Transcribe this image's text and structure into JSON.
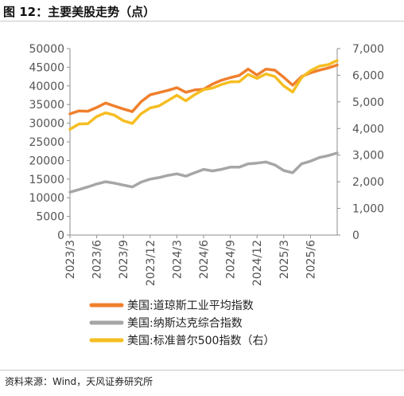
{
  "header": {
    "title": "图 12：主要美股走势（点）"
  },
  "footer": {
    "source": "资料来源：Wind，天风证券研究所"
  },
  "colors": {
    "dow": "#F07F2D",
    "nasdaq": "#A6A6A6",
    "sp500": "#F5BE22",
    "axis": "#8C8C8C"
  },
  "chart_data": {
    "type": "line",
    "title": "",
    "x": [
      "2023-03",
      "2023-04",
      "2023-05",
      "2023-06",
      "2023-07",
      "2023-08",
      "2023-09",
      "2023-10",
      "2023-11",
      "2023-12",
      "2024-01",
      "2024-02",
      "2024-03",
      "2024-04",
      "2024-05",
      "2024-06",
      "2024-07",
      "2024-08",
      "2024-09",
      "2024-10",
      "2024-11",
      "2024-12",
      "2025-01",
      "2025-02",
      "2025-03",
      "2025-04",
      "2025-05",
      "2025-06",
      "2025-07",
      "2025-08",
      "2025-09"
    ],
    "x_tick_labels": [
      "2023/3",
      "2023/6",
      "2023/9",
      "2023/12",
      "2024/3",
      "2024/6",
      "2024/9",
      "2024/12",
      "2025/3",
      "2025/6"
    ],
    "y_left": {
      "ticks": [
        "0",
        "5000",
        "10000",
        "15000",
        "20000",
        "25000",
        "30000",
        "35000",
        "40000",
        "45000",
        "50000"
      ],
      "ylim": [
        0,
        50000
      ]
    },
    "y_right": {
      "ticks": [
        "0",
        "1,000",
        "2,000",
        "3,000",
        "4,000",
        "5,000",
        "6,000",
        "7,000"
      ],
      "ylim": [
        0,
        7000
      ]
    },
    "series": [
      {
        "name": "美国:道琼斯工业平均指数",
        "axis": "left",
        "values": [
          32500,
          33300,
          33200,
          34200,
          35400,
          34600,
          33800,
          33100,
          35800,
          37600,
          38200,
          38800,
          39500,
          38300,
          38900,
          39100,
          40500,
          41500,
          42200,
          42800,
          44500,
          42900,
          44500,
          44200,
          42300,
          40200,
          42500,
          43500,
          44200,
          44800,
          45600
        ]
      },
      {
        "name": "美国:纳斯达克综合指数",
        "axis": "left",
        "values": [
          11500,
          12200,
          12900,
          13700,
          14300,
          13900,
          13400,
          12900,
          14200,
          15000,
          15400,
          16000,
          16400,
          15800,
          16700,
          17600,
          17200,
          17600,
          18200,
          18200,
          19100,
          19300,
          19600,
          18800,
          17300,
          16700,
          19100,
          19800,
          20800,
          21300,
          22000
        ]
      },
      {
        "name": "美国:标准普尔500指数（右）",
        "axis": "right",
        "values": [
          3970,
          4170,
          4180,
          4450,
          4590,
          4500,
          4290,
          4190,
          4560,
          4770,
          4850,
          5050,
          5250,
          5040,
          5270,
          5460,
          5520,
          5650,
          5750,
          5760,
          6030,
          5880,
          6050,
          5950,
          5600,
          5370,
          5910,
          6170,
          6340,
          6400,
          6550
        ]
      }
    ],
    "legend": {
      "position": "bottom"
    },
    "grid": false
  }
}
